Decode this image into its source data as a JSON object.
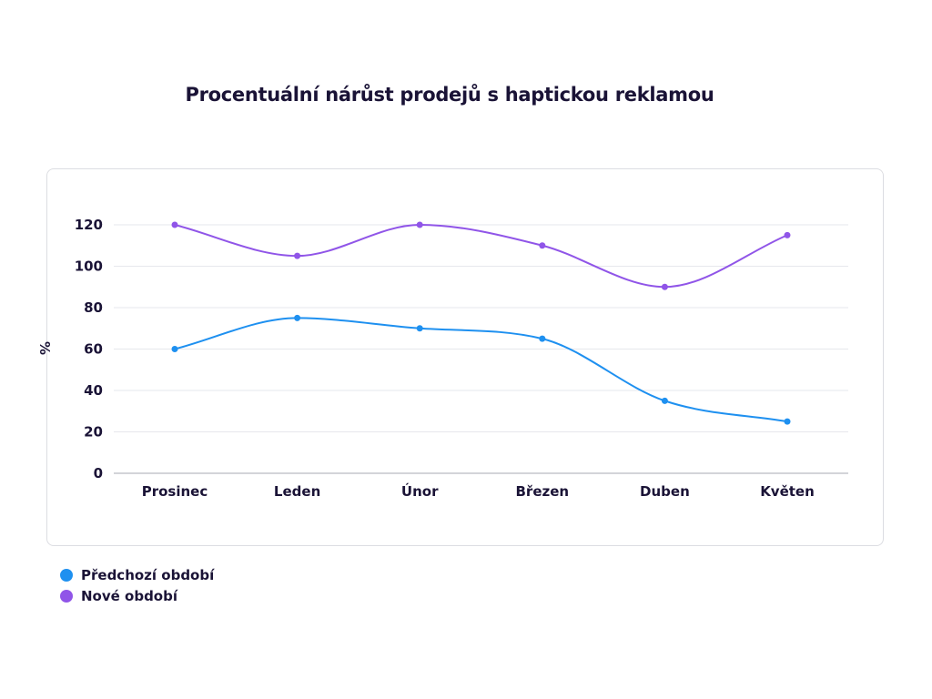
{
  "title": "Procentuální nárůst prodejů s haptickou reklamou",
  "colors": {
    "prev": "#1e90f0",
    "new": "#9055e8",
    "grid": "#e6e7ec",
    "axis": "#b9bac2",
    "text": "#1a1336"
  },
  "chart_data": {
    "type": "line",
    "ylabel": "%",
    "categories": [
      "Prosinec",
      "Leden",
      "Únor",
      "Březen",
      "Duben",
      "Květen"
    ],
    "ylim": [
      0,
      120
    ],
    "yticks": [
      0,
      20,
      40,
      60,
      80,
      100,
      120
    ],
    "grid": true,
    "legend_position": "bottom-left",
    "series": [
      {
        "name": "Předchozí období",
        "color": "#1e90f0",
        "values": [
          60,
          75,
          70,
          65,
          35,
          25
        ]
      },
      {
        "name": "Nové období",
        "color": "#9055e8",
        "values": [
          120,
          105,
          120,
          110,
          90,
          115
        ]
      }
    ]
  }
}
